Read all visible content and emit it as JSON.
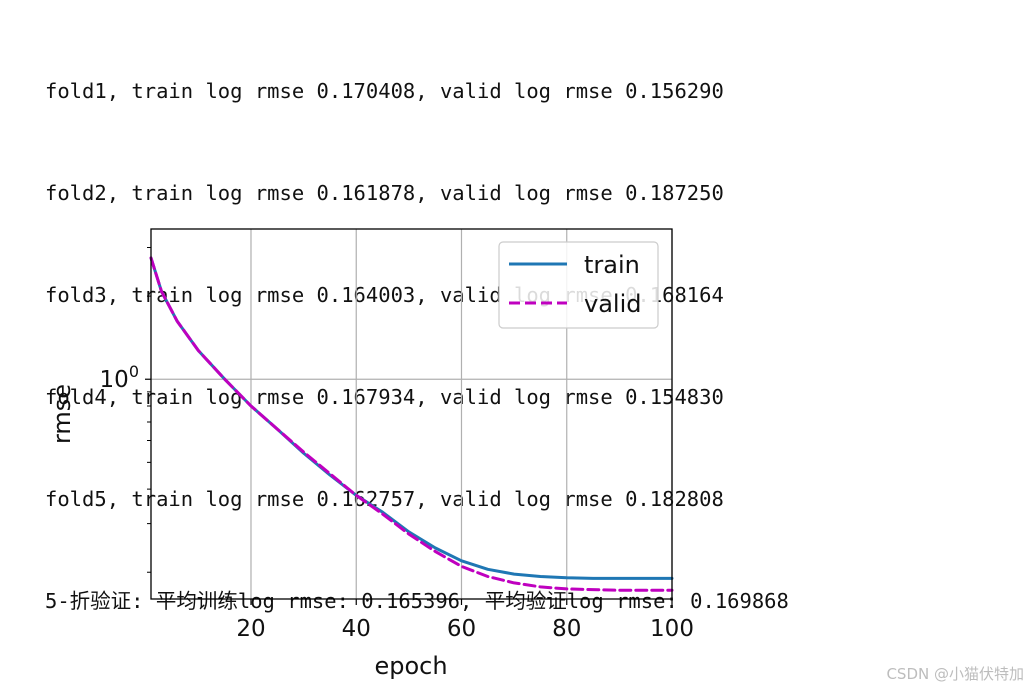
{
  "console": {
    "lines": [
      "fold1, train log rmse 0.170408, valid log rmse 0.156290",
      "fold2, train log rmse 0.161878, valid log rmse 0.187250",
      "fold3, train log rmse 0.164003, valid log rmse 0.168164",
      "fold4, train log rmse 0.167934, valid log rmse 0.154830",
      "fold5, train log rmse 0.162757, valid log rmse 0.182808",
      "5-折验证: 平均训练log rmse: 0.165396, 平均验证log rmse: 0.169868"
    ]
  },
  "chart_data": {
    "type": "line",
    "xlabel": "epoch",
    "ylabel": "rmse",
    "yscale": "log",
    "xlim": [
      1,
      100
    ],
    "ylim": [
      0.16,
      3.5
    ],
    "xticks": [
      20,
      40,
      60,
      80,
      100
    ],
    "yticks_major": [
      1
    ],
    "ytick_major_labels": [
      "10",
      "0"
    ],
    "grid": true,
    "legend_position": "top-right",
    "series": [
      {
        "name": "train",
        "color": "#1f77b4",
        "style": "solid",
        "x": [
          1,
          3,
          6,
          10,
          15,
          20,
          25,
          30,
          35,
          40,
          45,
          50,
          55,
          60,
          65,
          70,
          75,
          80,
          85,
          90,
          95,
          100
        ],
        "y": [
          2.75,
          2.08,
          1.62,
          1.27,
          1.0,
          0.8,
          0.66,
          0.54,
          0.45,
          0.38,
          0.33,
          0.28,
          0.245,
          0.22,
          0.205,
          0.197,
          0.193,
          0.191,
          0.19,
          0.19,
          0.19,
          0.19
        ]
      },
      {
        "name": "valid",
        "color": "#bf00bf",
        "style": "dashed",
        "x": [
          1,
          3,
          6,
          10,
          15,
          20,
          25,
          30,
          35,
          40,
          45,
          50,
          55,
          60,
          65,
          70,
          75,
          80,
          85,
          90,
          95,
          100
        ],
        "y": [
          2.75,
          2.08,
          1.62,
          1.27,
          1.0,
          0.8,
          0.66,
          0.545,
          0.455,
          0.38,
          0.325,
          0.275,
          0.238,
          0.21,
          0.193,
          0.183,
          0.177,
          0.174,
          0.173,
          0.172,
          0.172,
          0.172
        ]
      }
    ]
  },
  "watermark": "CSDN @小猫伏特加"
}
